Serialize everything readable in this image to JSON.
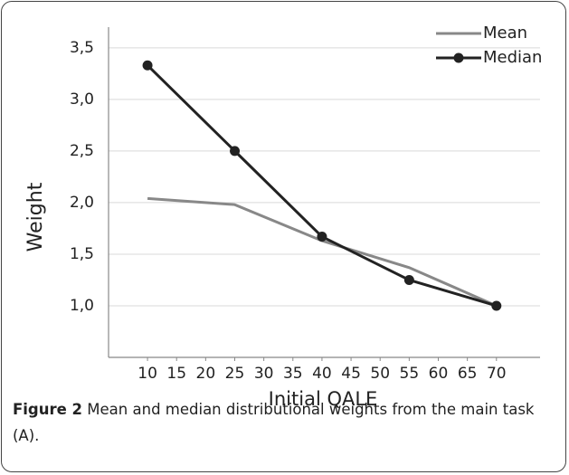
{
  "chart_data": {
    "type": "line",
    "xlabel": "Initial QALE",
    "ylabel": "Weight",
    "x": [
      10,
      25,
      40,
      55,
      70
    ],
    "series": [
      {
        "name": "Mean",
        "color": "#888888",
        "values": [
          2.04,
          1.98,
          1.63,
          1.37,
          1.0
        ],
        "marker": false
      },
      {
        "name": "Median",
        "color": "#222222",
        "values": [
          3.33,
          2.5,
          1.67,
          1.25,
          1.0
        ],
        "marker": true
      }
    ],
    "xlim": [
      3.3,
      77.5
    ],
    "xticks": [
      10,
      15,
      20,
      25,
      30,
      35,
      40,
      45,
      50,
      55,
      60,
      65,
      70
    ],
    "ylim": [
      0.5,
      3.7
    ],
    "yticks": [
      {
        "value": 1,
        "label": "1,0"
      },
      {
        "value": 1.5,
        "label": "1,5"
      },
      {
        "value": 2,
        "label": "2,0"
      },
      {
        "value": 2.5,
        "label": "2,5"
      },
      {
        "value": 3,
        "label": "3,0"
      },
      {
        "value": 3.5,
        "label": "3,5"
      }
    ],
    "grid": true,
    "legend": "top-right"
  },
  "caption": {
    "label": "Figure 2",
    "text": "Mean and median distributional weights from the main task (A)."
  }
}
